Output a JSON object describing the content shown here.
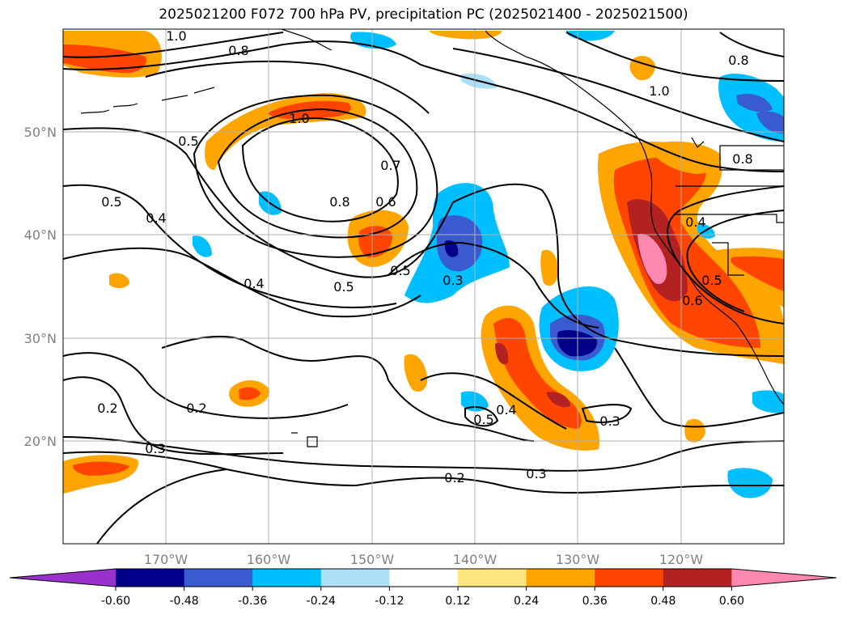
{
  "title": "2025021200 F072 700 hPa PV, precipitation PC (2025021400 - 2025021500)",
  "map": {
    "projection": "cylindrical",
    "lon_range": [
      -180,
      -110
    ],
    "lat_range": [
      10,
      60
    ],
    "gridlines": true,
    "lon_ticks": [
      "170°W",
      "160°W",
      "150°W",
      "140°W",
      "130°W",
      "120°W"
    ],
    "lat_ticks": [
      "50°N",
      "40°N",
      "30°N",
      "20°N"
    ],
    "pv_contour_labels": [
      "1.0",
      "0.8",
      "0.8",
      "1.0",
      "0.8",
      "0.5",
      "1.0",
      "0.7",
      "0.5",
      "0.4",
      "0.8",
      "0.6",
      "0.4",
      "0.5",
      "0.5",
      "0.3",
      "0.6",
      "0.5",
      "0.4",
      "0.2",
      "0.2",
      "0.4",
      "0.5",
      "0.3",
      "0.3",
      "0.3",
      "0.2"
    ]
  },
  "colorbar": {
    "levels": [
      "-0.60",
      "-0.48",
      "-0.36",
      "-0.24",
      "-0.12",
      "0.12",
      "0.24",
      "0.36",
      "0.48",
      "0.60"
    ],
    "colors": [
      "#9932CC",
      "#00008B",
      "#3A5BD0",
      "#00BFFF",
      "#ADE0F8",
      "#FFFFFF",
      "#FFE680",
      "#FFA500",
      "#FF4500",
      "#B22222",
      "#FF88B0"
    ],
    "extend": "both"
  }
}
